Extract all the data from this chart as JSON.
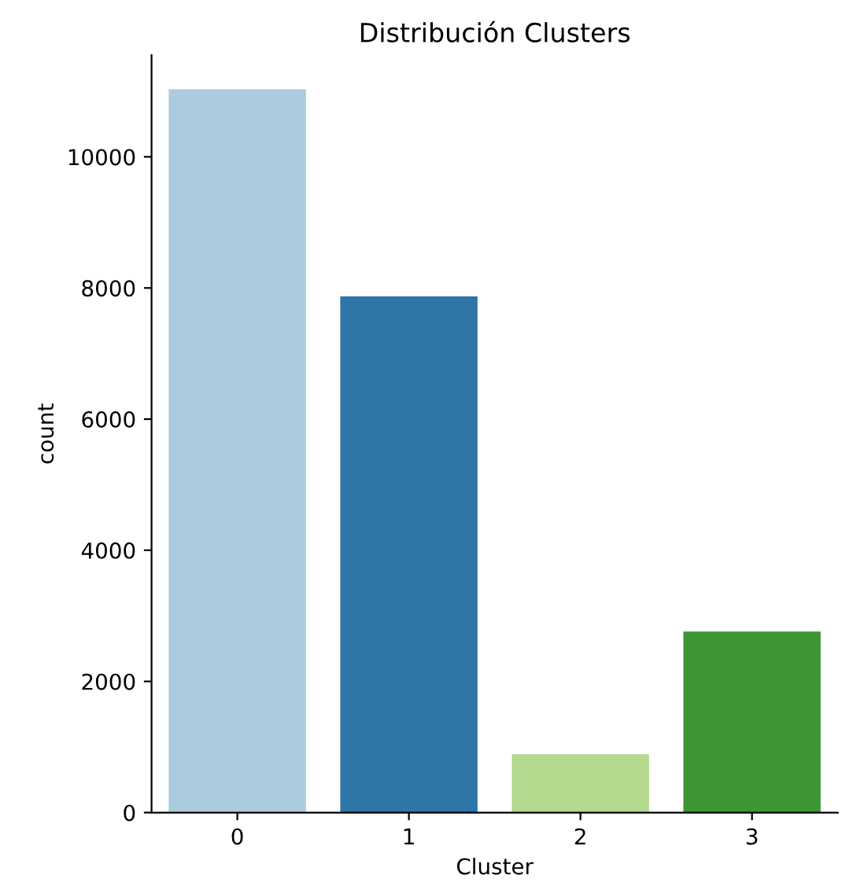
{
  "chart_data": {
    "type": "bar",
    "title": "Distribución Clusters",
    "xlabel": "Cluster",
    "ylabel": "count",
    "categories": [
      "0",
      "1",
      "2",
      "3"
    ],
    "values": [
      11030,
      7870,
      890,
      2760
    ],
    "colors": [
      "#abcbde",
      "#2e75a8",
      "#b5d98f",
      "#3c9635"
    ],
    "ylim": [
      0,
      11550
    ],
    "yticks": [
      0,
      2000,
      4000,
      6000,
      8000,
      10000
    ],
    "grid": false
  }
}
